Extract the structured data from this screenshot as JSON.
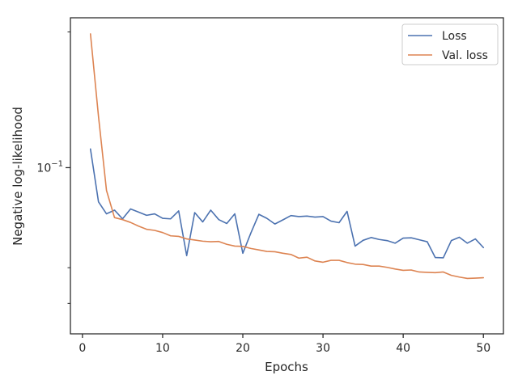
{
  "chart_data": {
    "type": "line",
    "title": "",
    "xlabel": "Epochs",
    "ylabel": "Negative log-likelihood",
    "xscale": "linear",
    "yscale": "log",
    "xlim": [
      -1.5,
      52.5
    ],
    "ylim": [
      0.0428,
      0.215
    ],
    "xticks": [
      0,
      10,
      20,
      30,
      40,
      50
    ],
    "xtick_labels": [
      "0",
      "10",
      "20",
      "30",
      "40",
      "50"
    ],
    "y_major_ticks": [
      0.1
    ],
    "y_major_labels": [
      {
        "base": "10",
        "exp": "−1"
      }
    ],
    "y_minor_ticks": [
      0.05,
      0.06,
      0.2
    ],
    "grid": false,
    "legend": "top-right",
    "x": [
      1,
      2,
      3,
      4,
      5,
      6,
      7,
      8,
      9,
      10,
      11,
      12,
      13,
      14,
      15,
      16,
      17,
      18,
      19,
      20,
      21,
      22,
      23,
      24,
      25,
      26,
      27,
      28,
      29,
      30,
      31,
      32,
      33,
      34,
      35,
      36,
      37,
      38,
      39,
      40,
      41,
      42,
      43,
      44,
      45,
      46,
      47,
      48,
      49,
      50
    ],
    "series": [
      {
        "name": "Loss",
        "color": "#4c72b0",
        "values": [
          0.11,
          0.084,
          0.079,
          0.0805,
          0.077,
          0.081,
          0.0797,
          0.0784,
          0.079,
          0.0772,
          0.077,
          0.0802,
          0.0638,
          0.0795,
          0.0758,
          0.0805,
          0.0767,
          0.0752,
          0.079,
          0.0646,
          0.0716,
          0.0788,
          0.0772,
          0.075,
          0.0766,
          0.0783,
          0.0779,
          0.0781,
          0.0777,
          0.0779,
          0.0761,
          0.0755,
          0.08,
          0.067,
          0.069,
          0.07,
          0.0693,
          0.0689,
          0.068,
          0.0698,
          0.0699,
          0.0692,
          0.0685,
          0.0632,
          0.0631,
          0.0689,
          0.0701,
          0.068,
          0.0695,
          0.0665
        ]
      },
      {
        "name": "Val. loss",
        "color": "#dd8452",
        "values": [
          0.198,
          0.13,
          0.089,
          0.0775,
          0.0767,
          0.0756,
          0.0742,
          0.073,
          0.0726,
          0.0718,
          0.0706,
          0.0704,
          0.0695,
          0.0691,
          0.0687,
          0.0685,
          0.0686,
          0.0676,
          0.067,
          0.0669,
          0.0662,
          0.0657,
          0.0652,
          0.0651,
          0.0646,
          0.0642,
          0.063,
          0.0633,
          0.0621,
          0.0617,
          0.0623,
          0.0623,
          0.0616,
          0.0611,
          0.061,
          0.0605,
          0.0605,
          0.0601,
          0.0596,
          0.0592,
          0.0593,
          0.0587,
          0.0586,
          0.0585,
          0.0587,
          0.0577,
          0.0572,
          0.0568,
          0.0569,
          0.057
        ]
      }
    ]
  }
}
